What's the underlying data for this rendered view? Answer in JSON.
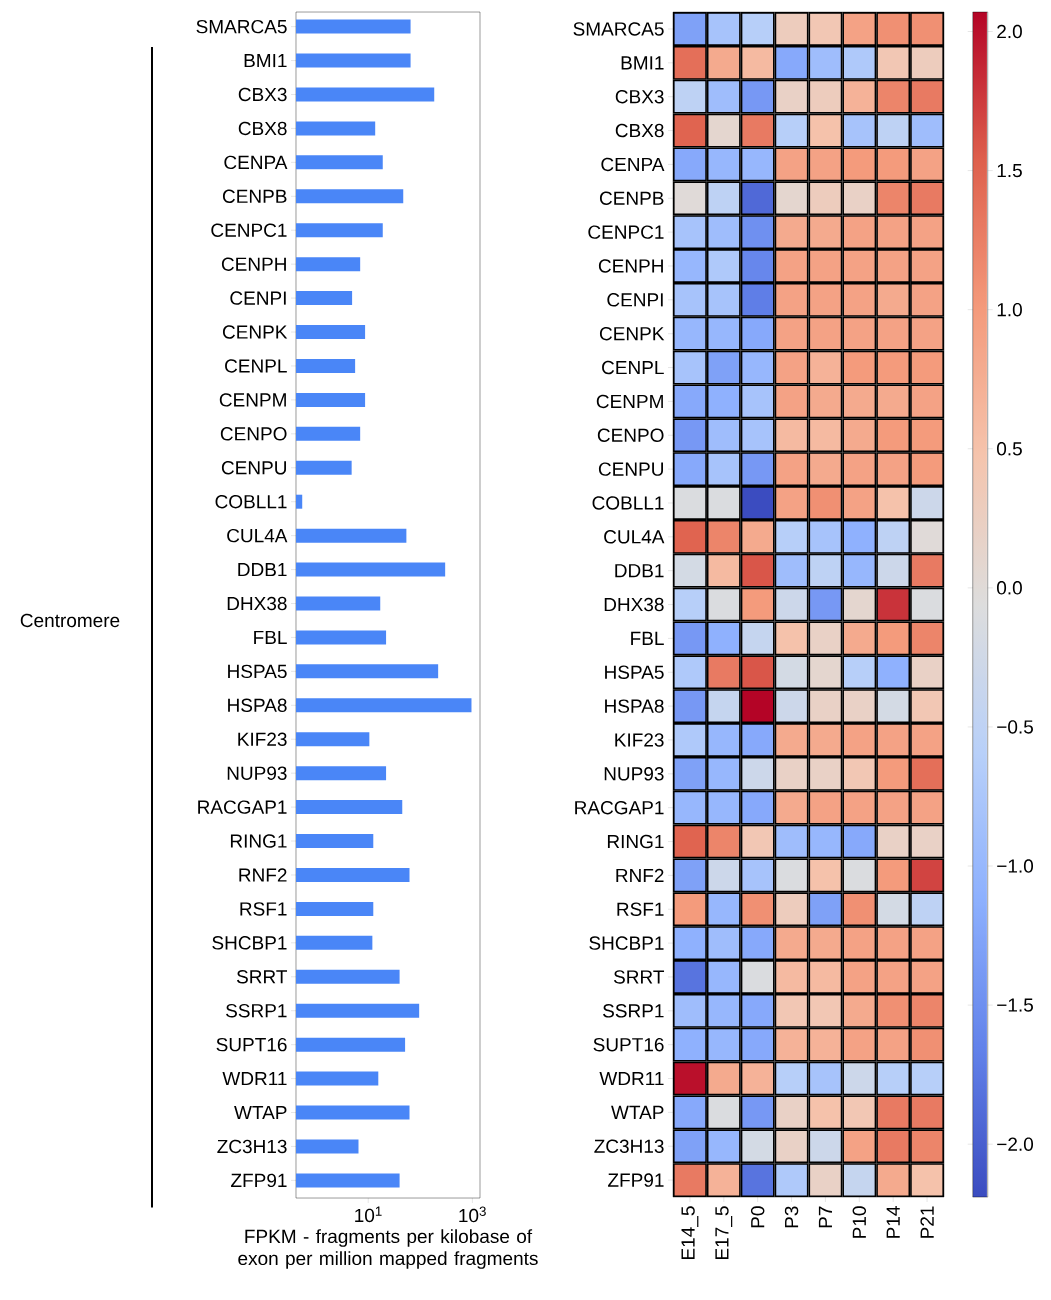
{
  "chart_data": [
    {
      "type": "bar",
      "orientation": "horizontal",
      "log": "x",
      "color": "#4a86f7",
      "categories": [
        "SMARCA5",
        "BMI1",
        "CBX3",
        "CBX8",
        "CENPA",
        "CENPB",
        "CENPC1",
        "CENPH",
        "CENPI",
        "CENPK",
        "CENPL",
        "CENPM",
        "CENPO",
        "CENPU",
        "COBLL1",
        "CUL4A",
        "DDB1",
        "DHX38",
        "FBL",
        "HSPA5",
        "HSPA8",
        "KIF23",
        "NUP93",
        "RACGAP1",
        "RING1",
        "RNF2",
        "RSF1",
        "SHCBP1",
        "SRRT",
        "SSRP1",
        "SUPT16",
        "WDR11",
        "WTAP",
        "ZC3H13",
        "ZFP91"
      ],
      "values": [
        65,
        65,
        185,
        13.6,
        19,
        47,
        19,
        7,
        4.9,
        8.7,
        5.6,
        8.7,
        7,
        4.8,
        0.54,
        54,
        300,
        17,
        22,
        220,
        960,
        10.5,
        22,
        45,
        12.5,
        62,
        12.5,
        12,
        40,
        95,
        51,
        15.6,
        62,
        6.5,
        40
      ],
      "xlim": [
        0.41,
        1400
      ],
      "xticks": [
        {
          "value": 10,
          "label": "10$^{1}$"
        },
        {
          "value": 1000,
          "label": "10$^{3}$"
        }
      ],
      "xlabel": "FPKM - fragments per kilobase of exon per million mapped fragments",
      "annotations": [
        "Centromere"
      ]
    },
    {
      "type": "heatmap",
      "categories": [
        "E14_5",
        "E17_5",
        "P0",
        "P3",
        "P7",
        "P10",
        "P14",
        "P21"
      ],
      "y_categories": [
        "SMARCA5",
        "BMI1",
        "CBX3",
        "CBX8",
        "CENPA",
        "CENPB",
        "CENPC1",
        "CENPH",
        "CENPI",
        "CENPK",
        "CENPL",
        "CENPM",
        "CENPO",
        "CENPU",
        "COBLL1",
        "CUL4A",
        "DDB1",
        "DHX38",
        "FBL",
        "HSPA5",
        "HSPA8",
        "KIF23",
        "NUP93",
        "RACGAP1",
        "RING1",
        "RNF2",
        "RSF1",
        "SHCBP1",
        "SRRT",
        "SSRP1",
        "SUPT16",
        "WDR11",
        "WTAP",
        "ZC3H13",
        "ZFP91"
      ],
      "cells": [
        [
          -1.3,
          -0.8,
          -0.6,
          0.3,
          0.4,
          0.9,
          1.1,
          1.1
        ],
        [
          1.4,
          0.8,
          0.6,
          -1.2,
          -0.9,
          -0.7,
          0.4,
          0.3
        ],
        [
          -0.5,
          -0.9,
          -1.4,
          0.2,
          0.3,
          0.7,
          1.2,
          1.3
        ],
        [
          1.5,
          0.1,
          1.3,
          -0.6,
          0.5,
          -0.8,
          -0.5,
          -0.9
        ],
        [
          -1.2,
          -1.0,
          -1.0,
          0.9,
          0.9,
          1.0,
          1.0,
          0.9
        ],
        [
          0.0,
          -0.5,
          -1.9,
          0.1,
          0.3,
          0.2,
          1.2,
          1.3
        ],
        [
          -0.8,
          -0.9,
          -1.5,
          0.8,
          0.8,
          0.9,
          0.9,
          0.9
        ],
        [
          -1.0,
          -0.7,
          -1.6,
          0.9,
          0.9,
          0.9,
          0.9,
          0.9
        ],
        [
          -0.8,
          -0.8,
          -1.7,
          0.9,
          0.9,
          0.9,
          0.8,
          0.9
        ],
        [
          -1.0,
          -1.0,
          -1.2,
          0.9,
          0.9,
          0.9,
          0.9,
          0.9
        ],
        [
          -0.8,
          -1.3,
          -1.0,
          0.9,
          0.7,
          1.0,
          1.0,
          1.0
        ],
        [
          -1.2,
          -1.1,
          -0.8,
          0.9,
          0.8,
          0.8,
          0.8,
          0.9
        ],
        [
          -1.4,
          -0.9,
          -0.8,
          0.6,
          0.6,
          0.8,
          1.0,
          1.0
        ],
        [
          -1.2,
          -0.8,
          -1.4,
          0.9,
          0.8,
          0.9,
          0.9,
          1.0
        ],
        [
          -0.1,
          -0.1,
          -2.2,
          0.9,
          1.1,
          0.9,
          0.5,
          -0.3
        ],
        [
          1.5,
          1.2,
          0.8,
          -0.6,
          -0.8,
          -1.1,
          -0.5,
          0.0
        ],
        [
          -0.2,
          0.6,
          1.6,
          -0.9,
          -0.5,
          -1.0,
          -0.3,
          1.3
        ],
        [
          -0.6,
          -0.1,
          1.0,
          -0.3,
          -1.4,
          0.1,
          1.8,
          -0.1
        ],
        [
          -1.4,
          -1.1,
          -0.4,
          0.5,
          0.2,
          0.8,
          1.0,
          1.2
        ],
        [
          -0.7,
          1.3,
          1.6,
          -0.2,
          0.1,
          -0.6,
          -1.1,
          0.2
        ],
        [
          -1.4,
          -0.4,
          2.07,
          -0.3,
          0.2,
          0.2,
          -0.2,
          0.4
        ],
        [
          -0.7,
          -1.0,
          -1.2,
          0.8,
          0.8,
          0.9,
          0.9,
          0.9
        ],
        [
          -1.3,
          -1.0,
          -0.3,
          0.2,
          0.2,
          0.4,
          1.0,
          1.4
        ],
        [
          -1.0,
          -1.0,
          -1.2,
          0.8,
          0.9,
          0.9,
          0.9,
          0.9
        ],
        [
          1.5,
          1.2,
          0.4,
          -0.9,
          -1.0,
          -1.2,
          0.2,
          0.2
        ],
        [
          -1.3,
          -0.3,
          -0.8,
          -0.1,
          0.5,
          -0.1,
          1.0,
          1.7
        ],
        [
          1.0,
          -1.0,
          1.1,
          0.3,
          -1.3,
          1.1,
          -0.2,
          -0.5
        ],
        [
          -1.1,
          -0.9,
          -1.2,
          0.8,
          0.8,
          0.9,
          0.9,
          0.9
        ],
        [
          -1.8,
          -1.0,
          -0.1,
          0.6,
          0.6,
          0.9,
          0.9,
          0.9
        ],
        [
          -0.9,
          -1.0,
          -1.2,
          0.4,
          0.4,
          0.8,
          1.1,
          1.2
        ],
        [
          -1.1,
          -1.0,
          -1.2,
          0.7,
          0.7,
          0.9,
          0.9,
          1.1
        ],
        [
          2.0,
          0.8,
          0.7,
          -0.6,
          -0.8,
          -0.3,
          -0.6,
          -0.6
        ],
        [
          -1.2,
          -0.1,
          -1.4,
          0.2,
          0.5,
          0.4,
          1.3,
          1.3
        ],
        [
          -1.3,
          -1.0,
          -0.2,
          0.2,
          -0.3,
          0.9,
          1.3,
          1.2
        ],
        [
          1.3,
          0.7,
          -1.8,
          -0.7,
          0.2,
          -0.4,
          0.8,
          0.5
        ]
      ],
      "clim": [
        -2.19,
        2.07
      ],
      "cticks": [
        {
          "value": -2.0,
          "label": "−2.0"
        },
        {
          "value": -1.5,
          "label": "−1.5"
        },
        {
          "value": -1.0,
          "label": "−1.0"
        },
        {
          "value": -0.5,
          "label": "−0.5"
        },
        {
          "value": 0.0,
          "label": "0.0"
        },
        {
          "value": 0.5,
          "label": "0.5"
        },
        {
          "value": 1.0,
          "label": "1.0"
        },
        {
          "value": 1.5,
          "label": "1.5"
        },
        {
          "value": 2.0,
          "label": "2.0"
        }
      ]
    }
  ]
}
